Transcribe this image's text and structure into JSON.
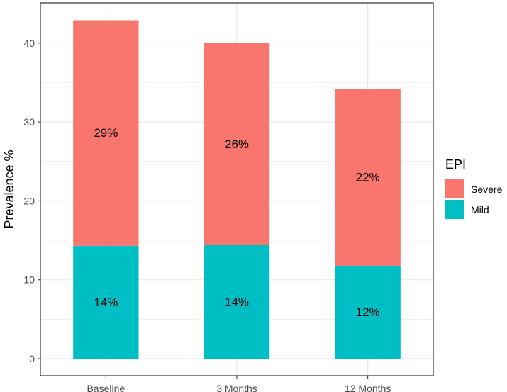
{
  "chart_data": {
    "type": "bar",
    "stacked": true,
    "categories": [
      "Baseline",
      "3 Months",
      "12 Months"
    ],
    "series": [
      {
        "name": "Mild",
        "values": [
          14.3,
          14.4,
          11.8
        ],
        "labels": [
          "14%",
          "14%",
          "12%"
        ],
        "color": "#00BFC4"
      },
      {
        "name": "Severe",
        "values": [
          28.6,
          25.6,
          22.4
        ],
        "labels": [
          "29%",
          "26%",
          "22%"
        ],
        "color": "#F8766D"
      }
    ],
    "ylabel": "Prevalence %",
    "yticks": [
      0,
      10,
      20,
      30,
      40
    ],
    "ylim": [
      -2.15,
      45.1
    ],
    "legend": {
      "title": "EPI",
      "position": "right",
      "entries": [
        "Severe",
        "Mild"
      ]
    },
    "grid": true,
    "panel_background": "#ffffff",
    "grid_color": "#ebebeb",
    "border_color": "#333333"
  }
}
